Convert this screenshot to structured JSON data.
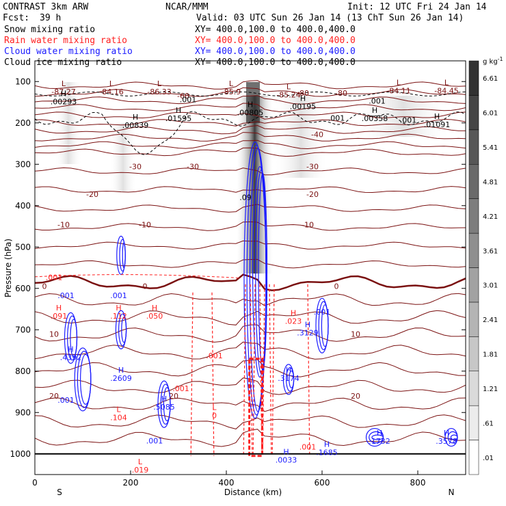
{
  "header": {
    "model": "CONTRAST  3km ARW",
    "center": "NCAR/MMM",
    "init": "Init: 12 UTC Fri 24 Jan 14",
    "fcst_label": "Fcst:",
    "fcst_value": "39 h",
    "valid": "Valid: 03 UTC Sun 26 Jan 14 (13 ChT Sun 26 Jan 14)"
  },
  "legend": [
    {
      "name": "Snow mixing ratio",
      "color": "#000000",
      "xy": ""
    },
    {
      "name": "Rain water mixing ratio",
      "color": "#ff2020",
      "xy": "XY=  400.0,100.0 to 400.0,400.0"
    },
    {
      "name": "Cloud water mixing ratio",
      "color": "#1a1aff",
      "xy": "XY=  400.0,100.0 to 400.0,400.0"
    },
    {
      "name": "Cloud ice mixing ratio",
      "color": "#000000",
      "xy": "XY=  400.0,100.0 to 400.0,400.0"
    }
  ],
  "snow_xy": "XY=  400.0,100.0 to 400.0,400.0",
  "colors": {
    "theta_contour": "#7a1010",
    "rain": "#ff2020",
    "cloud_water": "#1a1aff",
    "ice": "#000000",
    "shade": "#333333"
  },
  "chart_data": {
    "type": "heatmap",
    "xlabel": "Distance (km)",
    "ylabel": "Pressure (hPa)",
    "xlim": [
      0,
      900
    ],
    "ylim": [
      1050,
      50
    ],
    "x_ticks": [
      "0",
      "200",
      "400",
      "600",
      "800"
    ],
    "x_tick_values": [
      0,
      200,
      400,
      600,
      800
    ],
    "y_ticks": [
      "100",
      "200",
      "300",
      "400",
      "500",
      "600",
      "700",
      "800",
      "900",
      "1000"
    ],
    "y_tick_values": [
      100,
      200,
      300,
      400,
      500,
      600,
      700,
      800,
      900,
      1000
    ],
    "endpoints": {
      "left": "S",
      "right": "N"
    },
    "colorbar": {
      "unit": "g kg",
      "unit_exp": "-1",
      "levels": [
        ".01",
        ".61",
        "1.21",
        "1.81",
        "2.41",
        "3.01",
        "3.61",
        "4.21",
        "4.81",
        "5.41",
        "6.01",
        "6.61"
      ],
      "level_values": [
        0.01,
        0.61,
        1.21,
        1.81,
        2.41,
        3.01,
        3.61,
        4.21,
        4.81,
        5.41,
        6.01,
        6.61
      ]
    },
    "temperature_contours": [
      {
        "label": "-80",
        "p": 128,
        "x": 560
      },
      {
        "label": "-80",
        "p": 128,
        "x": 640
      },
      {
        "label": "-60",
        "p": 134,
        "x": 310
      },
      {
        "label": "-40",
        "p": 228,
        "x": 590
      },
      {
        "label": "-30",
        "p": 305,
        "x": 210
      },
      {
        "label": "-30",
        "p": 305,
        "x": 330
      },
      {
        "label": "-30",
        "p": 305,
        "x": 580
      },
      {
        "label": "-20",
        "p": 372,
        "x": 120
      },
      {
        "label": "-20",
        "p": 372,
        "x": 580
      },
      {
        "label": "-10",
        "p": 446,
        "x": 60
      },
      {
        "label": "-10",
        "p": 446,
        "x": 230
      },
      {
        "label": "-10",
        "p": 446,
        "x": 570
      },
      {
        "label": "0",
        "p": 595,
        "x": 20
      },
      {
        "label": "0",
        "p": 595,
        "x": 230
      },
      {
        "label": "0",
        "p": 595,
        "x": 630
      },
      {
        "label": "10",
        "p": 710,
        "x": 40
      },
      {
        "label": "10",
        "p": 710,
        "x": 670
      },
      {
        "label": "20",
        "p": 860,
        "x": 40
      },
      {
        "label": "20",
        "p": 860,
        "x": 290
      },
      {
        "label": "20",
        "p": 860,
        "x": 670
      }
    ],
    "extrema": [
      {
        "kind": "L",
        "value": "-87.27",
        "p": 118,
        "x": 60,
        "color": "#7a1010"
      },
      {
        "kind": "L",
        "value": "-84.16",
        "p": 118,
        "x": 160,
        "color": "#7a1010"
      },
      {
        "kind": "L",
        "value": "-86.33",
        "p": 118,
        "x": 260,
        "color": "#7a1010"
      },
      {
        "kind": "L",
        "value": "-85.9",
        "p": 118,
        "x": 410,
        "color": "#7a1010"
      },
      {
        "kind": "L",
        "value": "-85.24",
        "p": 125,
        "x": 530,
        "color": "#7a1010"
      },
      {
        "kind": "L",
        "value": "-84.11",
        "p": 115,
        "x": 760,
        "color": "#7a1010"
      },
      {
        "kind": "L",
        "value": "-84.45",
        "p": 115,
        "x": 860,
        "color": "#7a1010"
      },
      {
        "kind": "H",
        "value": ".00293",
        "p": 142,
        "x": 60,
        "color": "#000000"
      },
      {
        "kind": "H",
        "value": ".00839",
        "p": 199,
        "x": 210,
        "color": "#000000"
      },
      {
        "kind": "H",
        "value": ".01595",
        "p": 182,
        "x": 300,
        "color": "#000000"
      },
      {
        "kind": "H",
        "value": ".00805",
        "p": 168,
        "x": 450,
        "color": "#000000"
      },
      {
        "kind": "H",
        "value": ".00195",
        "p": 153,
        "x": 560,
        "color": "#000000"
      },
      {
        "kind": "H",
        "value": ".00358",
        "p": 182,
        "x": 710,
        "color": "#000000"
      },
      {
        "kind": "H",
        "value": ".01091",
        "p": 197,
        "x": 840,
        "color": "#000000"
      },
      {
        "kind": "H",
        "value": ".4392",
        "p": 760,
        "x": 75,
        "color": "#1a1aff"
      },
      {
        "kind": "H",
        "value": ".2609",
        "p": 810,
        "x": 180,
        "color": "#1a1aff"
      },
      {
        "kind": "H",
        "value": ".5085",
        "p": 880,
        "x": 270,
        "color": "#1a1aff"
      },
      {
        "kind": "H",
        "value": ".3129",
        "p": 700,
        "x": 570,
        "color": "#1a1aff"
      },
      {
        "kind": "H",
        "value": ".3174",
        "p": 810,
        "x": 530,
        "color": "#1a1aff"
      },
      {
        "kind": "H",
        "value": ".1685",
        "p": 990,
        "x": 610,
        "color": "#1a1aff"
      },
      {
        "kind": "H",
        "value": ".1732",
        "p": 962,
        "x": 720,
        "color": "#1a1aff"
      },
      {
        "kind": "H",
        "value": ".3578",
        "p": 962,
        "x": 860,
        "color": "#1a1aff"
      },
      {
        "kind": "H",
        "value": ".0033",
        "p": 1008,
        "x": 525,
        "color": "#1a1aff"
      },
      {
        "kind": "H",
        "value": ".091",
        "p": 660,
        "x": 50,
        "color": "#ff2020"
      },
      {
        "kind": "H",
        "value": ".112",
        "p": 660,
        "x": 175,
        "color": "#ff2020"
      },
      {
        "kind": "H",
        "value": ".050",
        "p": 660,
        "x": 250,
        "color": "#ff2020"
      },
      {
        "kind": "H",
        "value": ".023",
        "p": 672,
        "x": 540,
        "color": "#ff2020"
      },
      {
        "kind": "L",
        "value": ".104",
        "p": 905,
        "x": 175,
        "color": "#ff2020"
      },
      {
        "kind": "L",
        "value": ".019",
        "p": 1032,
        "x": 220,
        "color": "#ff2020"
      },
      {
        "kind": "L",
        "value": "0",
        "p": 900,
        "x": 375,
        "color": "#ff2020"
      }
    ],
    "contour_value_labels": [
      {
        "label": ".001",
        "p": 143,
        "x": 320,
        "color": "#000000"
      },
      {
        "label": ".001",
        "p": 147,
        "x": 715,
        "color": "#000000"
      },
      {
        "label": ".001",
        "p": 188,
        "x": 630,
        "color": "#000000"
      },
      {
        "label": ".001",
        "p": 193,
        "x": 780,
        "color": "#000000"
      },
      {
        "label": ".09",
        "p": 380,
        "x": 440,
        "color": "#000000"
      },
      {
        "label": ".001",
        "p": 617,
        "x": 65,
        "color": "#1a1aff"
      },
      {
        "label": ".001",
        "p": 617,
        "x": 175,
        "color": "#1a1aff"
      },
      {
        "label": ".001",
        "p": 657,
        "x": 600,
        "color": "#1a1aff"
      },
      {
        "label": ".001",
        "p": 870,
        "x": 65,
        "color": "#1a1aff"
      },
      {
        "label": ".001",
        "p": 968,
        "x": 250,
        "color": "#1a1aff"
      },
      {
        "label": ".001",
        "p": 573,
        "x": 40,
        "color": "#ff2020"
      },
      {
        "label": ".001",
        "p": 762,
        "x": 375,
        "color": "#ff2020"
      },
      {
        "label": ".001",
        "p": 842,
        "x": 305,
        "color": "#ff2020"
      },
      {
        "label": ".001",
        "p": 983,
        "x": 570,
        "color": "#ff2020"
      }
    ]
  }
}
